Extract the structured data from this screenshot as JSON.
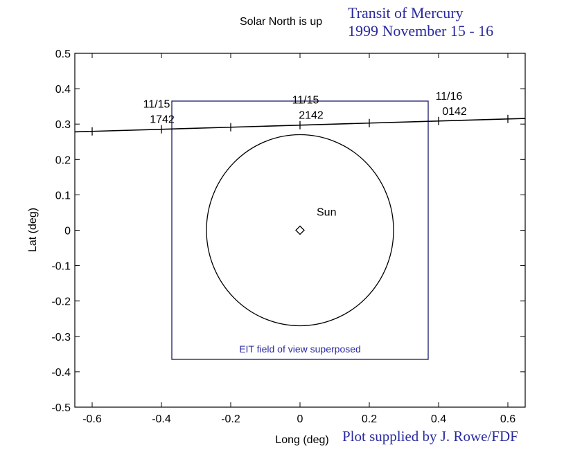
{
  "header": {
    "solar_note": "Solar North is up",
    "title_line1": "Transit of Mercury",
    "title_line2": "1999 November 15 - 16"
  },
  "footer": {
    "credit": "Plot supplied by J. Rowe/FDF"
  },
  "colors": {
    "annotation_blue": "#2a2aa0",
    "fov_box": "#1a1a6e",
    "axis": "#000000"
  },
  "chart_data": {
    "type": "line",
    "xlabel": "Long (deg)",
    "ylabel": "Lat (deg)",
    "xlim": [
      -0.65,
      0.65
    ],
    "ylim": [
      -0.5,
      0.5
    ],
    "xticks": [
      -0.6,
      -0.4,
      -0.2,
      0,
      0.2,
      0.4,
      0.6
    ],
    "xtick_labels": [
      "-0.6",
      "-0.4",
      "-0.2",
      "0",
      "0.2",
      "0.4",
      "0.6"
    ],
    "yticks": [
      0.5,
      0.4,
      0.3,
      0.2,
      0.1,
      0,
      -0.1,
      -0.2,
      -0.3,
      -0.4,
      -0.5
    ],
    "ytick_labels": [
      "0.5",
      "0.4",
      "0.3",
      "0.2",
      "0.1",
      "0",
      "-0.1",
      "-0.2",
      "-0.3",
      "-0.4",
      "-0.5"
    ],
    "grid": false,
    "mercury_track": {
      "x": [
        -0.65,
        0.65
      ],
      "y": [
        0.278,
        0.316
      ],
      "tick_marks_x": [
        -0.6,
        -0.4,
        -0.2,
        0,
        0.2,
        0.4,
        0.6
      ],
      "time_labels": [
        {
          "date": "11/15",
          "time": "1742",
          "x": -0.4
        },
        {
          "date": "11/15",
          "time": "2142",
          "x": 0.0
        },
        {
          "date": "11/16",
          "time": "0142",
          "x": 0.4
        }
      ]
    },
    "sun": {
      "label": "Sun",
      "center": [
        0,
        0
      ],
      "radius_x": 0.27,
      "radius_y": 0.27
    },
    "fov_box": {
      "label": "EIT field of view superposed",
      "x": [
        -0.37,
        0.37
      ],
      "y": [
        -0.365,
        0.365
      ]
    }
  }
}
